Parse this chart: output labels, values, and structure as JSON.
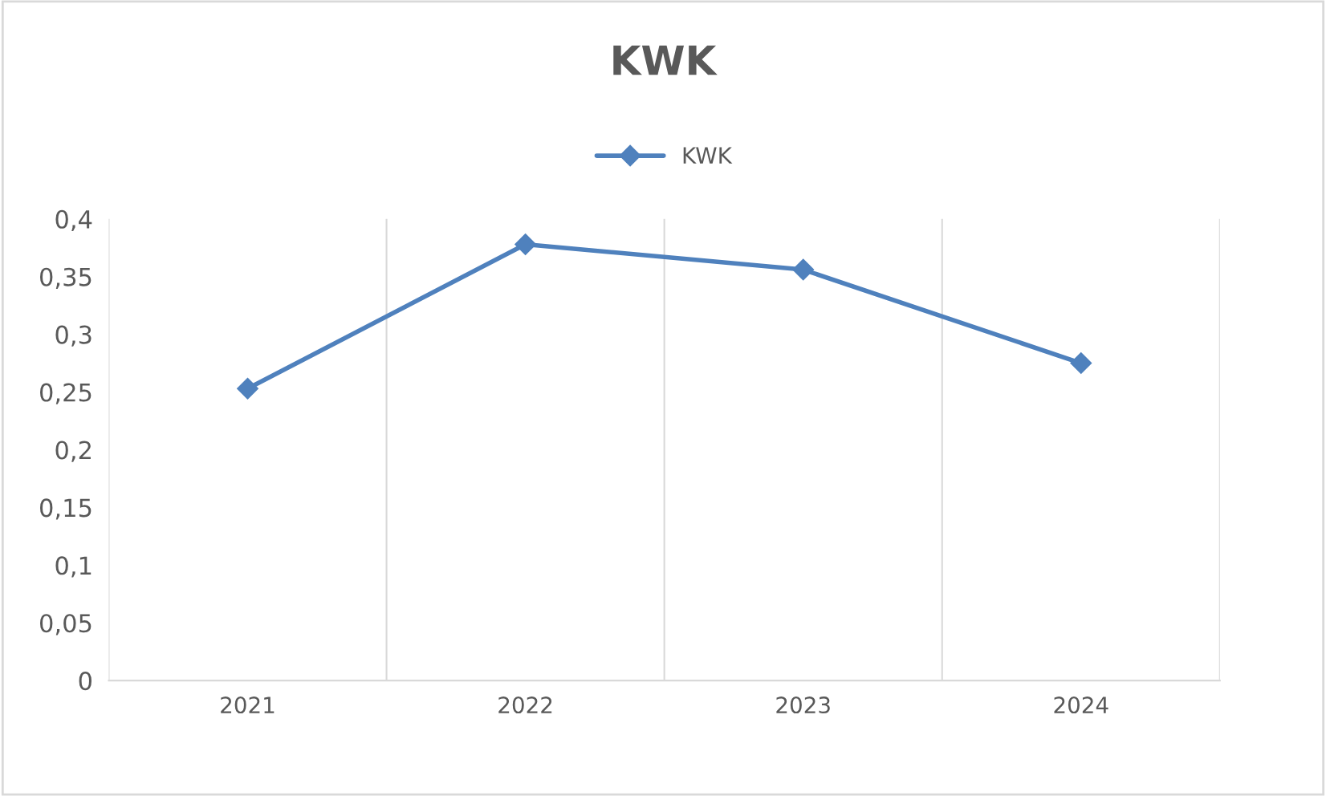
{
  "chart_data": {
    "type": "line",
    "title": "KWK",
    "categories": [
      "2021",
      "2022",
      "2023",
      "2024"
    ],
    "series": [
      {
        "name": "KWK",
        "color": "#4f81bd",
        "values": [
          0.253,
          0.378,
          0.356,
          0.275
        ]
      }
    ],
    "ylim": [
      0,
      0.4
    ],
    "yticks": [
      {
        "value": 0,
        "label": "0"
      },
      {
        "value": 0.05,
        "label": "0,05"
      },
      {
        "value": 0.1,
        "label": "0,1"
      },
      {
        "value": 0.15,
        "label": "0,15"
      },
      {
        "value": 0.2,
        "label": "0,2"
      },
      {
        "value": 0.25,
        "label": "0,25"
      },
      {
        "value": 0.3,
        "label": "0,3"
      },
      {
        "value": 0.35,
        "label": "0,35"
      },
      {
        "value": 0.4,
        "label": "0,4"
      }
    ],
    "grid": "x",
    "legend": "top",
    "marker": "diamond",
    "line_style": "solid"
  }
}
